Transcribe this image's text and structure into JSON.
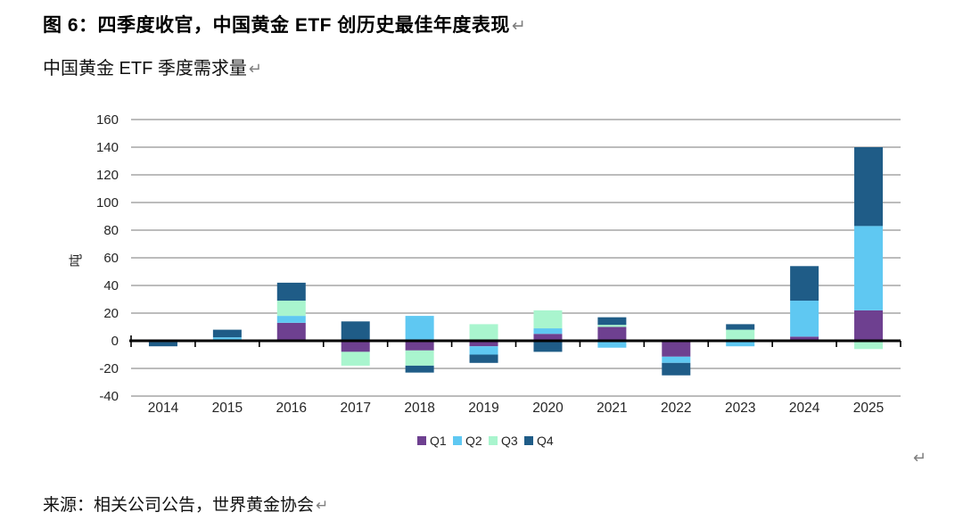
{
  "page": {
    "title": "图 6：四季度收官，中国黄金 ETF 创历史最佳年度表现",
    "subtitle": "中国黄金 ETF 季度需求量",
    "source": "来源：相关公司公告，世界黄金协会",
    "return_mark": "↵"
  },
  "chart_data": {
    "type": "bar",
    "stacked": true,
    "title": "中国黄金 ETF 季度需求量",
    "ylabel": "吨",
    "ylim": [
      -40,
      160
    ],
    "y_ticks": [
      160,
      140,
      120,
      100,
      80,
      60,
      40,
      20,
      0,
      -20,
      -40
    ],
    "grid": true,
    "legend_position": "bottom",
    "categories": [
      "2014",
      "2015",
      "2016",
      "2017",
      "2018",
      "2019",
      "2020",
      "2021",
      "2022",
      "2023",
      "2024",
      "2025"
    ],
    "series": [
      {
        "name": "Q1",
        "color": "#6E4090",
        "values": [
          0,
          0,
          13,
          -8,
          -7,
          -4,
          5,
          10,
          -11.5,
          0,
          3,
          22
        ]
      },
      {
        "name": "Q2",
        "color": "#5FC8F2",
        "values": [
          -1,
          2.5,
          5,
          0,
          18,
          -6,
          4,
          -5,
          -4.5,
          -4,
          26,
          61
        ]
      },
      {
        "name": "Q3",
        "color": "#A9F5CE",
        "values": [
          0,
          0,
          11,
          -10,
          -11,
          12,
          13,
          1.5,
          0,
          8,
          0,
          -6
        ]
      },
      {
        "name": "Q4",
        "color": "#1F5C87",
        "values": [
          -3,
          5.5,
          13,
          14,
          -5,
          -6,
          -8,
          5.5,
          -9,
          4,
          25,
          57
        ]
      }
    ]
  },
  "style": {
    "grid_color": "#A6A6A6",
    "axis_color": "#000000",
    "tick_label_color": "#262626",
    "return_mark_color": "#7f7f7f"
  }
}
